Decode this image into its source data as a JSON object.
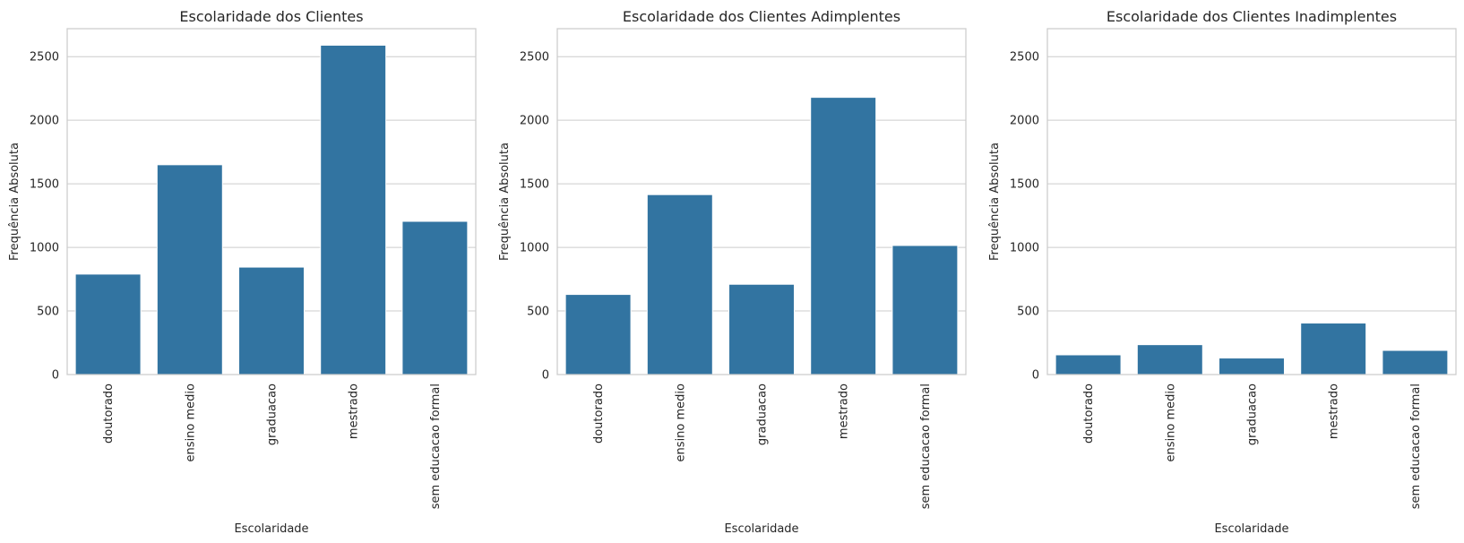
{
  "chart_data": [
    {
      "type": "bar",
      "title": "Escolaridade dos Clientes",
      "xlabel": "Escolaridade",
      "ylabel": "Frequência Absoluta",
      "categories": [
        "doutorado",
        "ensino medio",
        "graduacao",
        "mestrado",
        "sem educacao formal"
      ],
      "values": [
        790,
        1650,
        845,
        2590,
        1205
      ],
      "ylim": [
        0,
        2720
      ],
      "yticks": [
        0,
        500,
        1000,
        1500,
        2000,
        2500
      ],
      "grid": true,
      "color": "#3274a1"
    },
    {
      "type": "bar",
      "title": "Escolaridade dos Clientes Adimplentes",
      "xlabel": "Escolaridade",
      "ylabel": "Frequência Absoluta",
      "categories": [
        "doutorado",
        "ensino medio",
        "graduacao",
        "mestrado",
        "sem educacao formal"
      ],
      "values": [
        630,
        1415,
        710,
        2180,
        1015
      ],
      "ylim": [
        0,
        2720
      ],
      "yticks": [
        0,
        500,
        1000,
        1500,
        2000,
        2500
      ],
      "grid": true,
      "color": "#3274a1"
    },
    {
      "type": "bar",
      "title": "Escolaridade dos Clientes Inadimplentes",
      "xlabel": "Escolaridade",
      "ylabel": "Frequência Absoluta",
      "categories": [
        "doutorado",
        "ensino medio",
        "graduacao",
        "mestrado",
        "sem educacao formal"
      ],
      "values": [
        155,
        235,
        130,
        405,
        190
      ],
      "ylim": [
        0,
        2720
      ],
      "yticks": [
        0,
        500,
        1000,
        1500,
        2000,
        2500
      ],
      "grid": true,
      "color": "#3274a1"
    }
  ]
}
